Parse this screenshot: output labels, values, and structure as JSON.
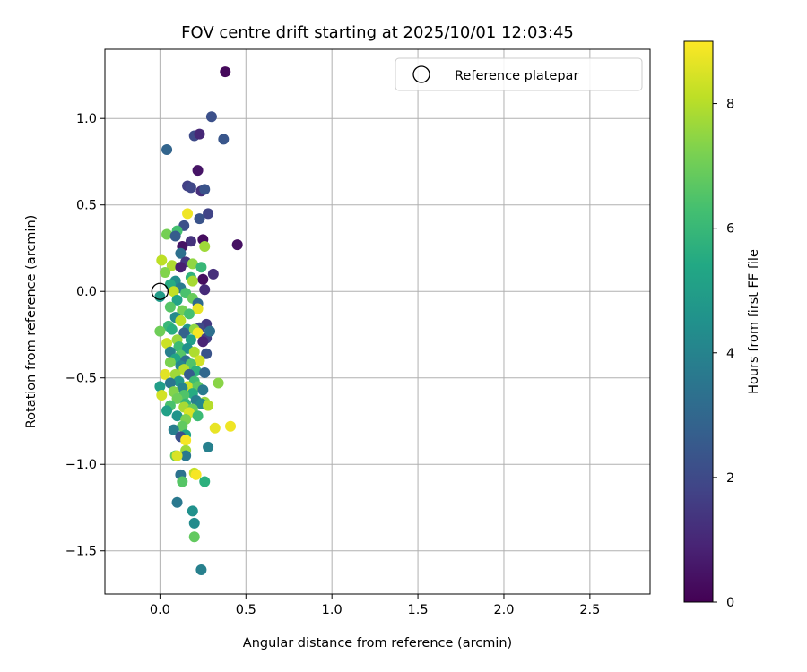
{
  "chart_data": {
    "type": "scatter",
    "title": "FOV centre drift starting at 2025/10/01 12:03:45",
    "xlabel": "Angular distance from reference (arcmin)",
    "ylabel": "Rotation from reference (arcmin)",
    "xlim": [
      -0.32,
      2.85
    ],
    "ylim": [
      -1.75,
      1.4
    ],
    "xticks": [
      0.0,
      0.5,
      1.0,
      1.5,
      2.0,
      2.5
    ],
    "xtick_labels": [
      "0.0",
      "0.5",
      "1.0",
      "1.5",
      "2.0",
      "2.5"
    ],
    "yticks": [
      -1.5,
      -1.0,
      -0.5,
      0.0,
      0.5,
      1.0
    ],
    "ytick_labels": [
      "−1.5",
      "−1.0",
      "−0.5",
      "0.0",
      "0.5",
      "1.0"
    ],
    "grid": true,
    "legend": {
      "location": "top-right",
      "label": "Reference platepar"
    },
    "reference_point": {
      "x": 0.0,
      "y": 0.0
    },
    "colorbar": {
      "label": "Hours from first FF file",
      "colormap": "viridis",
      "range": [
        0,
        9
      ],
      "ticks": [
        0,
        2,
        4,
        6,
        8
      ],
      "tick_labels": [
        "0",
        "2",
        "4",
        "6",
        "8"
      ]
    },
    "series": [
      {
        "name": "FOV centre drift",
        "points": [
          [
            0.38,
            1.27,
            0.2
          ],
          [
            0.3,
            1.01,
            2.2
          ],
          [
            0.37,
            0.88,
            2.4
          ],
          [
            0.2,
            0.9,
            2.0
          ],
          [
            0.23,
            0.91,
            1.0
          ],
          [
            0.04,
            0.82,
            2.9
          ],
          [
            0.22,
            0.7,
            0.5
          ],
          [
            0.16,
            0.61,
            1.7
          ],
          [
            0.18,
            0.6,
            1.9
          ],
          [
            0.24,
            0.58,
            1.2
          ],
          [
            0.26,
            0.59,
            2.3
          ],
          [
            0.28,
            0.45,
            1.8
          ],
          [
            0.16,
            0.45,
            8.8
          ],
          [
            0.23,
            0.42,
            2.3
          ],
          [
            0.14,
            0.38,
            2.2
          ],
          [
            0.04,
            0.33,
            7.1
          ],
          [
            0.1,
            0.35,
            6.3
          ],
          [
            0.09,
            0.32,
            2.6
          ],
          [
            0.25,
            0.3,
            0.3
          ],
          [
            0.45,
            0.27,
            0.4
          ],
          [
            0.18,
            0.29,
            1.3
          ],
          [
            0.13,
            0.26,
            0.5
          ],
          [
            0.26,
            0.26,
            7.7
          ],
          [
            0.12,
            0.22,
            3.3
          ],
          [
            0.01,
            0.18,
            8.1
          ],
          [
            0.07,
            0.15,
            7.9
          ],
          [
            0.15,
            0.17,
            1.4
          ],
          [
            0.19,
            0.16,
            7.5
          ],
          [
            0.12,
            0.14,
            0.8
          ],
          [
            0.24,
            0.14,
            6.0
          ],
          [
            0.31,
            0.1,
            1.2
          ],
          [
            0.03,
            0.11,
            7.3
          ],
          [
            0.09,
            0.06,
            4.4
          ],
          [
            0.18,
            0.08,
            5.8
          ],
          [
            0.25,
            0.07,
            0.3
          ],
          [
            0.19,
            0.06,
            7.8
          ],
          [
            0.12,
            0.02,
            3.7
          ],
          [
            0.06,
            0.04,
            5.5
          ],
          [
            0.26,
            0.01,
            1.1
          ],
          [
            0.15,
            -0.01,
            6.4
          ],
          [
            0.0,
            -0.03,
            4.9
          ],
          [
            0.08,
            0.0,
            8.2
          ],
          [
            0.1,
            -0.05,
            5.2
          ],
          [
            0.19,
            -0.04,
            6.9
          ],
          [
            0.22,
            -0.07,
            3.1
          ],
          [
            0.06,
            -0.09,
            6.6
          ],
          [
            0.13,
            -0.11,
            7.1
          ],
          [
            0.22,
            -0.1,
            8.7
          ],
          [
            0.17,
            -0.13,
            6.3
          ],
          [
            0.09,
            -0.15,
            4.3
          ],
          [
            0.12,
            -0.17,
            8.1
          ],
          [
            0.27,
            -0.19,
            1.5
          ],
          [
            0.23,
            -0.21,
            2.0
          ],
          [
            0.05,
            -0.2,
            6.0
          ],
          [
            0.16,
            -0.22,
            4.7
          ],
          [
            0.2,
            -0.22,
            7.5
          ],
          [
            0.07,
            -0.22,
            5.6
          ],
          [
            0.14,
            -0.24,
            2.8
          ],
          [
            0.22,
            -0.24,
            8.9
          ],
          [
            0.0,
            -0.23,
            7.0
          ],
          [
            0.27,
            -0.27,
            1.7
          ],
          [
            0.29,
            -0.23,
            3.3
          ],
          [
            0.1,
            -0.28,
            7.6
          ],
          [
            0.18,
            -0.28,
            5.1
          ],
          [
            0.04,
            -0.3,
            8.3
          ],
          [
            0.25,
            -0.29,
            0.9
          ],
          [
            0.11,
            -0.32,
            6.1
          ],
          [
            0.16,
            -0.33,
            4.5
          ],
          [
            0.06,
            -0.35,
            3.9
          ],
          [
            0.2,
            -0.35,
            7.9
          ],
          [
            0.12,
            -0.37,
            6.6
          ],
          [
            0.27,
            -0.36,
            2.3
          ],
          [
            0.09,
            -0.39,
            5.3
          ],
          [
            0.23,
            -0.4,
            8.4
          ],
          [
            0.15,
            -0.4,
            3.3
          ],
          [
            0.06,
            -0.41,
            7.2
          ],
          [
            0.18,
            -0.42,
            6.5
          ],
          [
            0.12,
            -0.43,
            4.1
          ],
          [
            0.14,
            -0.45,
            8.0
          ],
          [
            0.21,
            -0.46,
            5.7
          ],
          [
            0.26,
            -0.47,
            3.0
          ],
          [
            0.09,
            -0.48,
            7.7
          ],
          [
            0.03,
            -0.48,
            8.6
          ],
          [
            0.17,
            -0.48,
            2.6
          ],
          [
            0.2,
            -0.52,
            6.2
          ],
          [
            0.11,
            -0.52,
            4.8
          ],
          [
            0.06,
            -0.53,
            3.5
          ],
          [
            0.34,
            -0.53,
            7.4
          ],
          [
            0.16,
            -0.55,
            8.3
          ],
          [
            0.22,
            -0.55,
            6.7
          ],
          [
            0.0,
            -0.55,
            5.0
          ],
          [
            0.13,
            -0.56,
            4.0
          ],
          [
            0.25,
            -0.57,
            3.7
          ],
          [
            0.08,
            -0.58,
            7.3
          ],
          [
            0.19,
            -0.59,
            5.5
          ],
          [
            0.14,
            -0.6,
            6.5
          ],
          [
            0.01,
            -0.6,
            8.4
          ],
          [
            0.1,
            -0.62,
            7.0
          ],
          [
            0.21,
            -0.63,
            3.8
          ],
          [
            0.26,
            -0.64,
            7.6
          ],
          [
            0.15,
            -0.65,
            5.9
          ],
          [
            0.06,
            -0.66,
            6.4
          ],
          [
            0.24,
            -0.65,
            4.2
          ],
          [
            0.28,
            -0.66,
            8.0
          ],
          [
            0.14,
            -0.67,
            7.8
          ],
          [
            0.19,
            -0.68,
            6.9
          ],
          [
            0.04,
            -0.69,
            5.1
          ],
          [
            0.17,
            -0.7,
            8.5
          ],
          [
            0.1,
            -0.72,
            4.6
          ],
          [
            0.22,
            -0.72,
            6.1
          ],
          [
            0.15,
            -0.74,
            7.2
          ],
          [
            0.41,
            -0.78,
            8.8
          ],
          [
            0.32,
            -0.79,
            8.7
          ],
          [
            0.13,
            -0.78,
            6.8
          ],
          [
            0.08,
            -0.8,
            3.8
          ],
          [
            0.15,
            -0.83,
            5.2
          ],
          [
            0.12,
            -0.84,
            2.2
          ],
          [
            0.15,
            -0.86,
            8.9
          ],
          [
            0.28,
            -0.9,
            3.9
          ],
          [
            0.15,
            -0.92,
            7.7
          ],
          [
            0.15,
            -0.95,
            3.6
          ],
          [
            0.09,
            -0.95,
            6.8
          ],
          [
            0.1,
            -0.95,
            8.5
          ],
          [
            0.12,
            -1.06,
            3.4
          ],
          [
            0.2,
            -1.05,
            8.2
          ],
          [
            0.21,
            -1.06,
            8.9
          ],
          [
            0.13,
            -1.1,
            6.6
          ],
          [
            0.26,
            -1.1,
            5.7
          ],
          [
            0.1,
            -1.22,
            3.6
          ],
          [
            0.19,
            -1.27,
            4.5
          ],
          [
            0.2,
            -1.34,
            4.3
          ],
          [
            0.2,
            -1.42,
            6.8
          ],
          [
            0.24,
            -1.61,
            3.9
          ]
        ]
      }
    ]
  }
}
